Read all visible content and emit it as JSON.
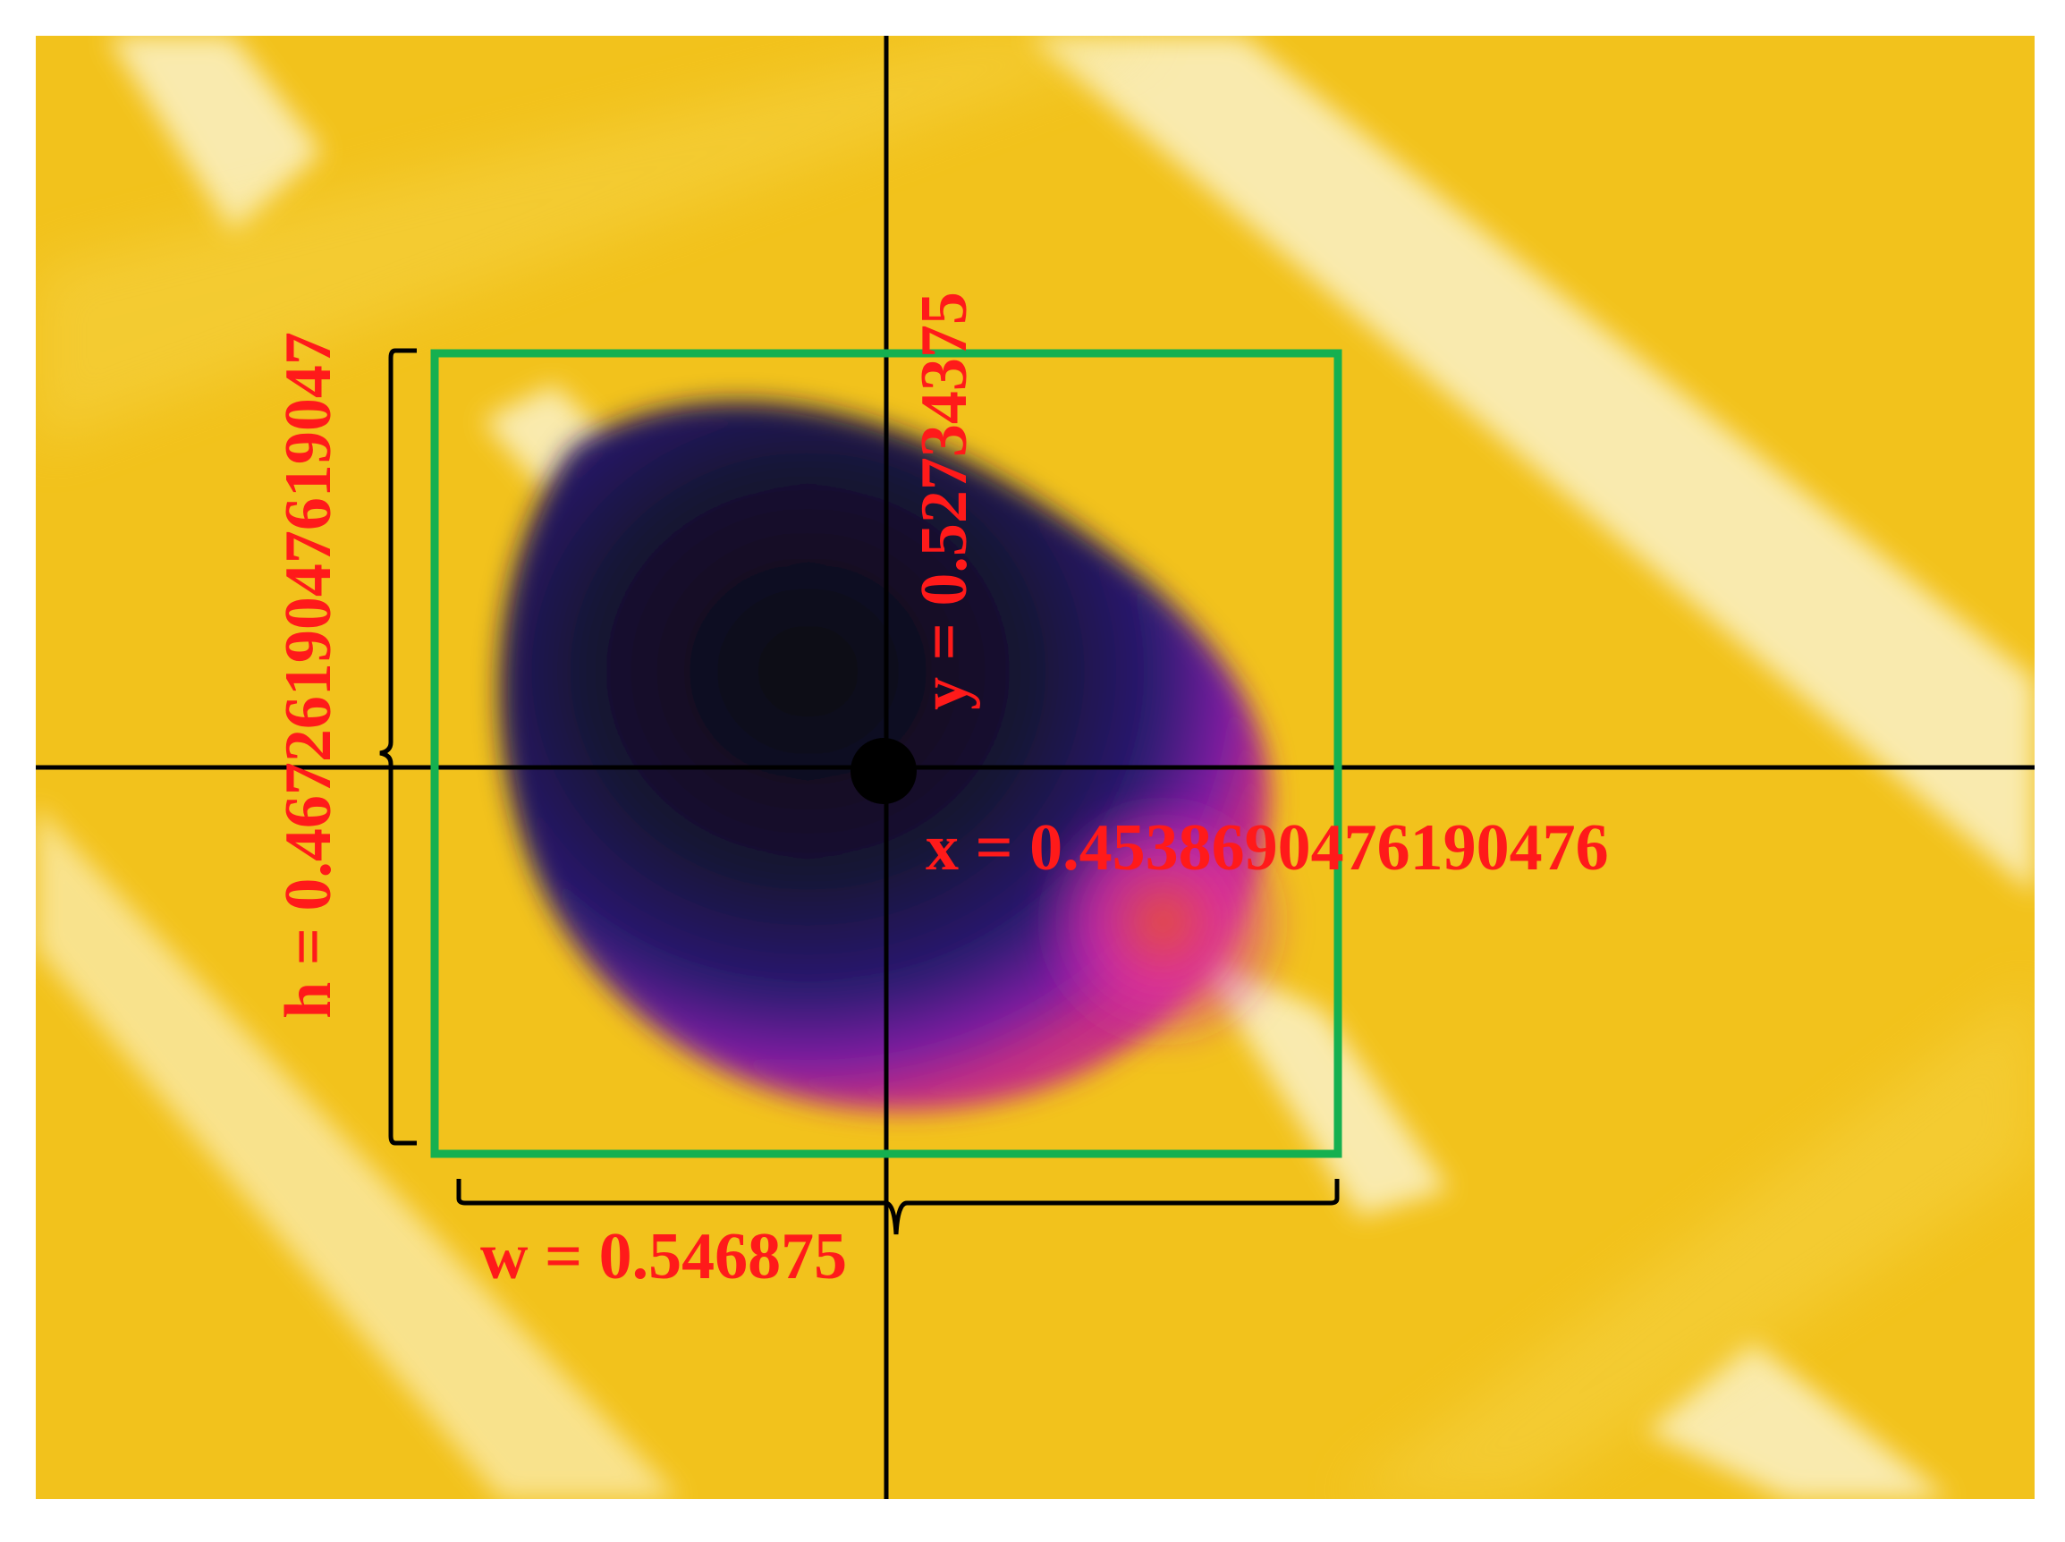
{
  "annotations": {
    "y_label": "y = 0.52734375",
    "x_label": "x = 0.4538690476190476",
    "h_label": "h = 0.4672619047619047",
    "w_label": "w = 0.546875"
  }
}
